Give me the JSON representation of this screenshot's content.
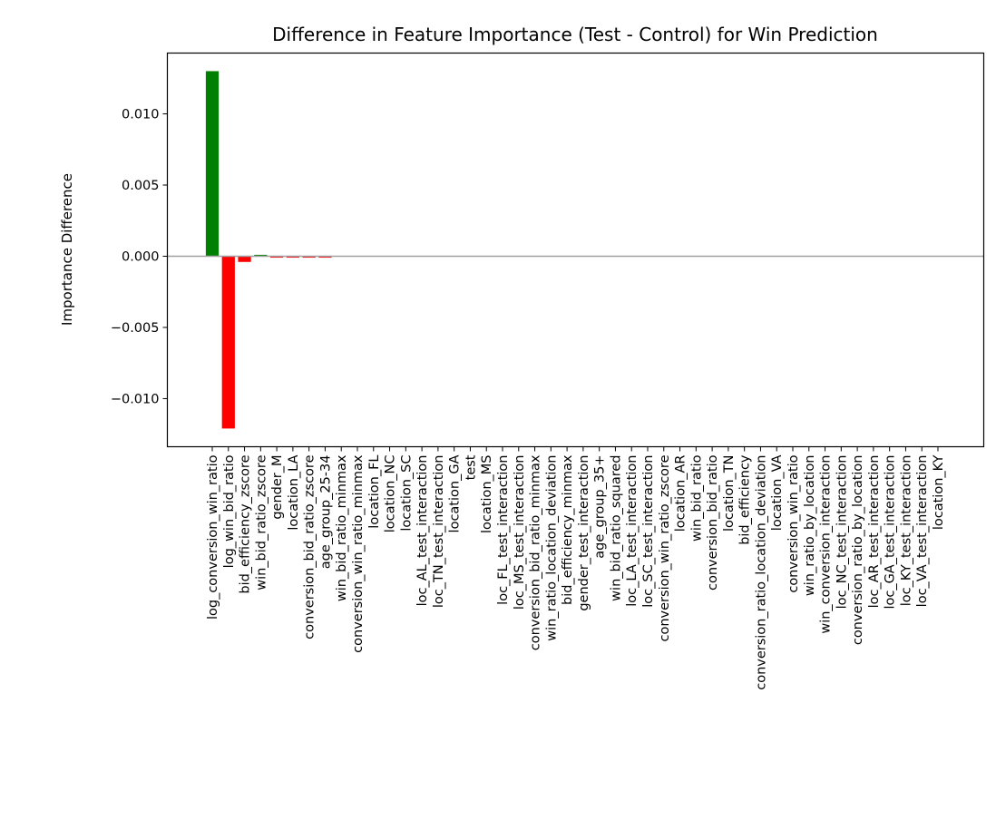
{
  "chart_data": {
    "type": "bar",
    "title": "Difference in Feature Importance (Test - Control) for Win Prediction",
    "xlabel": "",
    "ylabel": "Importance Difference",
    "ylim": [
      -0.01338,
      0.01427
    ],
    "yticks": [
      -0.01,
      -0.005,
      0.0,
      0.005,
      0.01
    ],
    "ytick_labels": [
      "−0.010",
      "−0.005",
      "0.000",
      "0.005",
      "0.010"
    ],
    "grid": false,
    "zero_line": true,
    "colors": {
      "positive": "#008000",
      "negative": "#ff0000",
      "zero_line": "#a0a0a0"
    },
    "categories": [
      "log_conversion_win_ratio",
      "log_win_bid_ratio",
      "bid_efficiency_zscore",
      "win_bid_ratio_zscore",
      "gender_M",
      "location_LA",
      "conversion_bid_ratio_zscore",
      "age_group_25-34",
      "win_bid_ratio_minmax",
      "conversion_win_ratio_minmax",
      "location_FL",
      "location_NC",
      "location_SC",
      "loc_AL_test_interaction",
      "loc_TN_test_interaction",
      "location_GA",
      "test",
      "location_MS",
      "loc_FL_test_interaction",
      "loc_MS_test_interaction",
      "conversion_bid_ratio_minmax",
      "win_ratio_location_deviation",
      "bid_efficiency_minmax",
      "gender_test_interaction",
      "age_group_35+",
      "win_bid_ratio_squared",
      "loc_LA_test_interaction",
      "loc_SC_test_interaction",
      "conversion_win_ratio_zscore",
      "location_AR",
      "win_bid_ratio",
      "conversion_bid_ratio",
      "location_TN",
      "bid_efficiency",
      "conversion_ratio_location_deviation",
      "location_VA",
      "conversion_win_ratio",
      "win_ratio_by_location",
      "win_conversion_interaction",
      "loc_NC_test_interaction",
      "conversion_ratio_by_location",
      "loc_AR_test_interaction",
      "loc_GA_test_interaction",
      "loc_KY_test_interaction",
      "loc_VA_test_interaction",
      "location_KY"
    ],
    "values": [
      0.013,
      -0.0121,
      -0.0004,
      0.0001,
      -0.0001,
      -0.0001,
      -0.0001,
      -0.0001,
      0,
      0,
      0,
      0,
      0,
      0,
      0,
      0,
      0,
      0,
      0,
      0,
      0,
      0,
      0,
      0,
      0,
      0,
      0,
      0,
      0,
      0,
      0,
      0,
      0,
      0,
      0,
      0,
      0,
      0,
      0,
      0,
      0,
      0,
      0,
      0,
      0,
      0
    ]
  }
}
